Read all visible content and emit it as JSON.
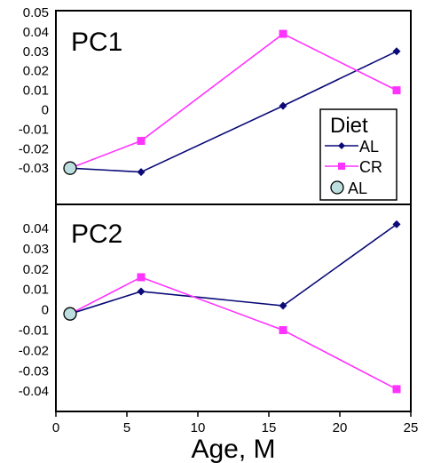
{
  "chart_data": {
    "type": "line",
    "xlabel": "Age, M",
    "xlim": [
      0,
      25
    ],
    "x_ticks": [
      "0",
      "5",
      "10",
      "15",
      "20",
      "25"
    ],
    "panels": [
      {
        "title": "PC1",
        "ylim": [
          -0.04,
          0.05
        ],
        "y_ticks": [
          "0.05",
          "0.04",
          "0.03",
          "0.02",
          "0.01",
          "0",
          "-0.01",
          "-0.02",
          "-0.03"
        ],
        "series": [
          {
            "name": "AL",
            "marker": "diamond",
            "color": "#0a0a78",
            "x": [
              1,
              6,
              16,
              24
            ],
            "y": [
              -0.03,
              -0.032,
              0.002,
              0.03
            ]
          },
          {
            "name": "CR",
            "marker": "square",
            "color": "#ff33ff",
            "x": [
              1,
              6,
              16,
              24
            ],
            "y": [
              -0.03,
              -0.016,
              0.039,
              0.01
            ]
          }
        ],
        "start_point": {
          "x": 1,
          "y": -0.03,
          "color": "#bcdede"
        }
      },
      {
        "title": "PC2",
        "ylim": [
          -0.05,
          0.05
        ],
        "y_ticks": [
          "0.04",
          "0.03",
          "0.02",
          "0.01",
          "0",
          "-0.01",
          "-0.02",
          "-0.03",
          "-0.04"
        ],
        "series": [
          {
            "name": "AL",
            "marker": "diamond",
            "color": "#0a0a78",
            "x": [
              1,
              6,
              16,
              24
            ],
            "y": [
              -0.002,
              0.009,
              0.002,
              0.042
            ]
          },
          {
            "name": "CR",
            "marker": "square",
            "color": "#ff33ff",
            "x": [
              1,
              6,
              16,
              24
            ],
            "y": [
              -0.002,
              0.016,
              -0.01,
              -0.039
            ]
          }
        ],
        "start_point": {
          "x": 1,
          "y": -0.002,
          "color": "#bcdede"
        }
      }
    ],
    "legend": {
      "title": "Diet",
      "placement": "lower-right of top panel",
      "entries": [
        {
          "label": "AL",
          "marker": "diamond",
          "color": "#0a0a78"
        },
        {
          "label": "CR",
          "marker": "square",
          "color": "#ff33ff"
        },
        {
          "label": "AL",
          "marker": "circle",
          "color": "#bcdede"
        }
      ]
    },
    "grid": false
  }
}
